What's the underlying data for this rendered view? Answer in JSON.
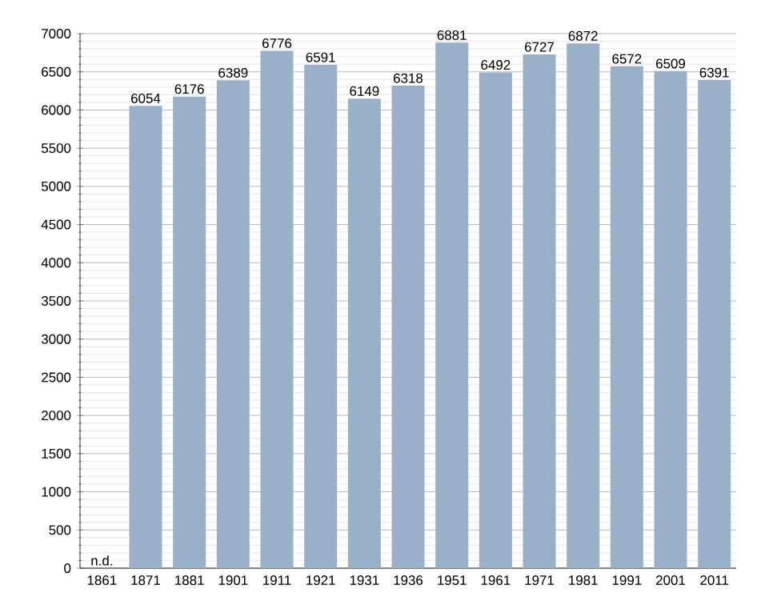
{
  "chart_data": {
    "type": "bar",
    "categories": [
      "1861",
      "1871",
      "1881",
      "1901",
      "1911",
      "1921",
      "1931",
      "1936",
      "1951",
      "1961",
      "1971",
      "1981",
      "1991",
      "2001",
      "2011"
    ],
    "values": [
      null,
      6054,
      6176,
      6389,
      6776,
      6591,
      6149,
      6318,
      6881,
      6492,
      6727,
      6872,
      6572,
      6509,
      6391
    ],
    "value_labels": [
      "n.d.",
      "6054",
      "6176",
      "6389",
      "6776",
      "6591",
      "6149",
      "6318",
      "6881",
      "6492",
      "6727",
      "6872",
      "6572",
      "6509",
      "6391"
    ],
    "color": "#9ab0c9",
    "ylim": [
      0,
      7000
    ],
    "yticks": [
      0,
      500,
      1000,
      1500,
      2000,
      2500,
      3000,
      3500,
      4000,
      4500,
      5000,
      5500,
      6000,
      6500,
      7000
    ],
    "grid": "y"
  }
}
